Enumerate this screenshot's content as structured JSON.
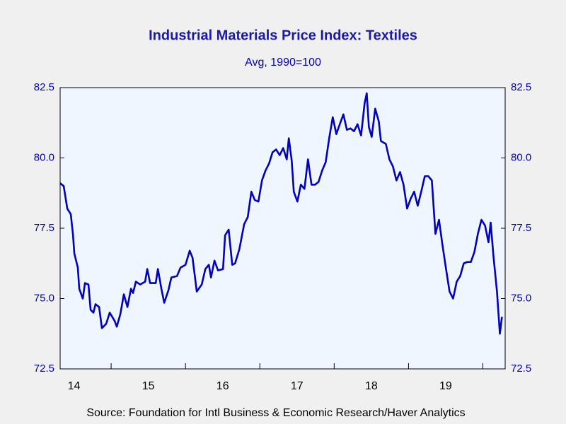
{
  "chart_data": {
    "type": "line",
    "title": "Industrial Materials Price Index: Textiles",
    "subtitle": "Avg, 1990=100",
    "source": "Source:  Foundation for Intl Business & Economic Research/Haver Analytics",
    "xlim": [
      2014.314,
      2020.3
    ],
    "xticks": [
      {
        "value": 2014,
        "label": "14"
      },
      {
        "value": 2015,
        "label": "15"
      },
      {
        "value": 2016,
        "label": "16"
      },
      {
        "value": 2017,
        "label": "17"
      },
      {
        "value": 2018,
        "label": "18"
      },
      {
        "value": 2019,
        "label": "19"
      },
      2020
    ],
    "ylim": [
      72.5,
      82.5
    ],
    "yticks": [
      {
        "value": 72.5,
        "label": "72.5"
      },
      {
        "value": 75,
        "label": "75.0"
      },
      {
        "value": 77.5,
        "label": "77.5"
      },
      {
        "value": 80,
        "label": "80.0"
      },
      {
        "value": 82.5,
        "label": "82.5"
      }
    ],
    "x": [
      2014.314,
      2014.362,
      2014.41,
      2014.457,
      2014.486,
      2014.505,
      2014.552,
      2014.571,
      2014.619,
      2014.648,
      2014.695,
      2014.724,
      2014.762,
      2014.79,
      2014.838,
      2014.876,
      2014.933,
      2014.981,
      2015.048,
      2015.076,
      2015.124,
      2015.171,
      2015.219,
      2015.267,
      2015.295,
      2015.333,
      2015.39,
      2015.457,
      2015.486,
      2015.524,
      2015.6,
      2015.629,
      2015.676,
      2015.714,
      2015.771,
      2015.81,
      2015.886,
      2015.933,
      2016.0,
      2016.057,
      2016.095,
      2016.152,
      2016.219,
      2016.267,
      2016.314,
      2016.343,
      2016.39,
      2016.438,
      2016.505,
      2016.533,
      2016.581,
      2016.629,
      2016.667,
      2016.724,
      2016.79,
      2016.838,
      2016.886,
      2016.933,
      2016.981,
      2017.029,
      2017.076,
      2017.124,
      2017.171,
      2017.219,
      2017.267,
      2017.314,
      2017.362,
      2017.39,
      2017.429,
      2017.457,
      2017.505,
      2017.552,
      2017.6,
      2017.648,
      2017.695,
      2017.743,
      2017.79,
      2017.838,
      2017.886,
      2017.933,
      2017.981,
      2018.029,
      2018.076,
      2018.124,
      2018.171,
      2018.219,
      2018.267,
      2018.314,
      2018.362,
      2018.41,
      2018.438,
      2018.467,
      2018.505,
      2018.552,
      2018.6,
      2018.629,
      2018.695,
      2018.743,
      2018.79,
      2018.838,
      2018.886,
      2018.933,
      2018.981,
      2019.029,
      2019.076,
      2019.124,
      2019.171,
      2019.219,
      2019.267,
      2019.314,
      2019.362,
      2019.41,
      2019.457,
      2019.505,
      2019.552,
      2019.6,
      2019.648,
      2019.695,
      2019.743,
      2019.79,
      2019.838,
      2019.886,
      2019.933,
      2019.981,
      2020.029,
      2020.076,
      2020.105,
      2020.143,
      2020.19,
      2020.229,
      2020.257
    ],
    "series": [
      {
        "color": "#0000c0",
        "values": [
          79.1,
          79.0,
          78.2,
          78.0,
          77.3,
          76.6,
          76.1,
          75.35,
          75.0,
          75.55,
          75.5,
          74.6,
          74.5,
          74.8,
          74.7,
          73.95,
          74.1,
          74.5,
          74.2,
          74.0,
          74.45,
          75.15,
          74.7,
          75.35,
          75.2,
          75.6,
          75.5,
          75.6,
          76.05,
          75.55,
          75.55,
          76.05,
          75.35,
          74.85,
          75.3,
          75.75,
          75.8,
          76.1,
          76.2,
          76.7,
          76.45,
          75.25,
          75.5,
          76.05,
          76.2,
          75.75,
          76.35,
          76.0,
          76.05,
          77.25,
          77.45,
          76.2,
          76.25,
          76.75,
          77.65,
          77.9,
          78.8,
          78.5,
          78.45,
          79.2,
          79.55,
          79.8,
          80.2,
          80.3,
          80.1,
          80.35,
          79.95,
          80.7,
          79.9,
          78.8,
          78.45,
          79.05,
          78.9,
          79.95,
          79.05,
          79.05,
          79.15,
          79.55,
          79.85,
          80.7,
          81.45,
          80.85,
          81.2,
          81.55,
          81.0,
          81.05,
          80.95,
          81.2,
          80.8,
          81.95,
          82.3,
          81.1,
          80.75,
          81.75,
          81.3,
          80.6,
          80.5,
          79.95,
          79.7,
          79.2,
          79.5,
          79.05,
          78.2,
          78.55,
          78.8,
          78.3,
          78.8,
          79.35,
          79.35,
          79.2,
          77.3,
          77.8,
          76.9,
          76.05,
          75.25,
          75.0,
          75.6,
          75.8,
          76.25,
          76.3,
          76.3,
          76.65,
          77.3,
          77.8,
          77.6,
          77.0,
          77.7,
          76.5,
          75.25,
          73.75,
          74.35
        ]
      }
    ]
  }
}
